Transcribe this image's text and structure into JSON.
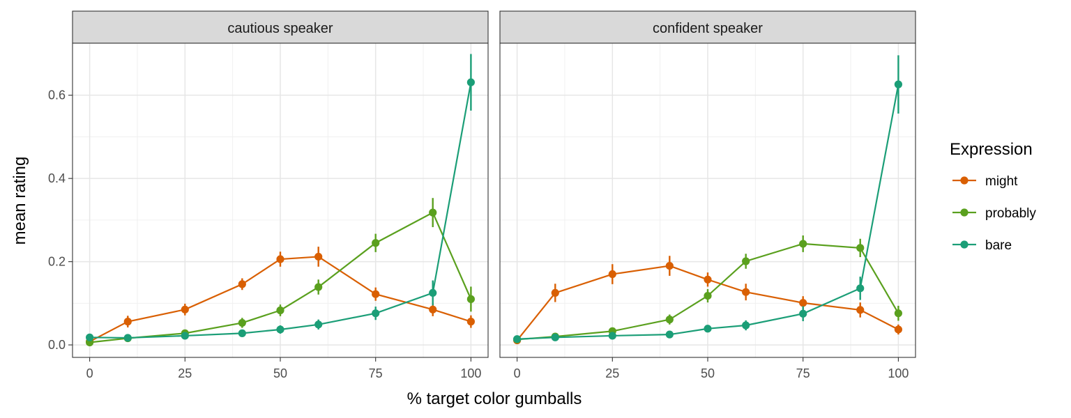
{
  "chart_data": {
    "type": "line",
    "xlabel": "% target color gumballs",
    "ylabel": "mean rating",
    "xlim": [
      -4.5,
      104.5
    ],
    "ylim": [
      -0.03,
      0.725
    ],
    "xticks": [
      0,
      25,
      50,
      75,
      100
    ],
    "xtick_labels": [
      "0",
      "25",
      "50",
      "75",
      "100"
    ],
    "yticks": [
      0.0,
      0.2,
      0.4,
      0.6
    ],
    "ytick_labels": [
      "0.0",
      "0.2",
      "0.4",
      "0.6"
    ],
    "x": [
      0,
      10,
      25,
      40,
      50,
      60,
      75,
      90,
      100
    ],
    "legend": {
      "title": "Expression",
      "position": "right",
      "entries": [
        "might",
        "probably",
        "bare"
      ]
    },
    "colors": {
      "might": "#D95F02",
      "probably": "#5AA01E",
      "bare": "#1B9E77"
    },
    "panels": [
      {
        "title": "cautious speaker",
        "series": [
          {
            "name": "might",
            "values": [
              0.008,
              0.056,
              0.085,
              0.146,
              0.206,
              0.212,
              0.122,
              0.085,
              0.056
            ],
            "err": [
              0.006,
              0.014,
              0.014,
              0.014,
              0.018,
              0.024,
              0.016,
              0.016,
              0.015
            ]
          },
          {
            "name": "probably",
            "values": [
              0.006,
              0.016,
              0.028,
              0.053,
              0.083,
              0.139,
              0.245,
              0.318,
              0.11
            ],
            "err": [
              0.005,
              0.006,
              0.007,
              0.012,
              0.014,
              0.018,
              0.022,
              0.035,
              0.03
            ]
          },
          {
            "name": "bare",
            "values": [
              0.018,
              0.017,
              0.022,
              0.028,
              0.037,
              0.049,
              0.076,
              0.125,
              0.631
            ],
            "err": [
              0.007,
              0.006,
              0.007,
              0.008,
              0.01,
              0.012,
              0.016,
              0.03,
              0.068
            ]
          }
        ]
      },
      {
        "title": "confident speaker",
        "series": [
          {
            "name": "might",
            "values": [
              0.011,
              0.125,
              0.17,
              0.19,
              0.157,
              0.127,
              0.101,
              0.084,
              0.037
            ],
            "err": [
              0.005,
              0.022,
              0.024,
              0.024,
              0.017,
              0.02,
              0.016,
              0.018,
              0.012
            ]
          },
          {
            "name": "probably",
            "values": [
              0.013,
              0.02,
              0.033,
              0.061,
              0.118,
              0.201,
              0.243,
              0.233,
              0.076
            ],
            "err": [
              0.004,
              0.006,
              0.008,
              0.012,
              0.016,
              0.018,
              0.02,
              0.022,
              0.018
            ]
          },
          {
            "name": "bare",
            "values": [
              0.014,
              0.018,
              0.022,
              0.025,
              0.039,
              0.047,
              0.075,
              0.136,
              0.626
            ],
            "err": [
              0.005,
              0.005,
              0.005,
              0.007,
              0.008,
              0.012,
              0.018,
              0.028,
              0.07
            ]
          }
        ]
      }
    ]
  }
}
